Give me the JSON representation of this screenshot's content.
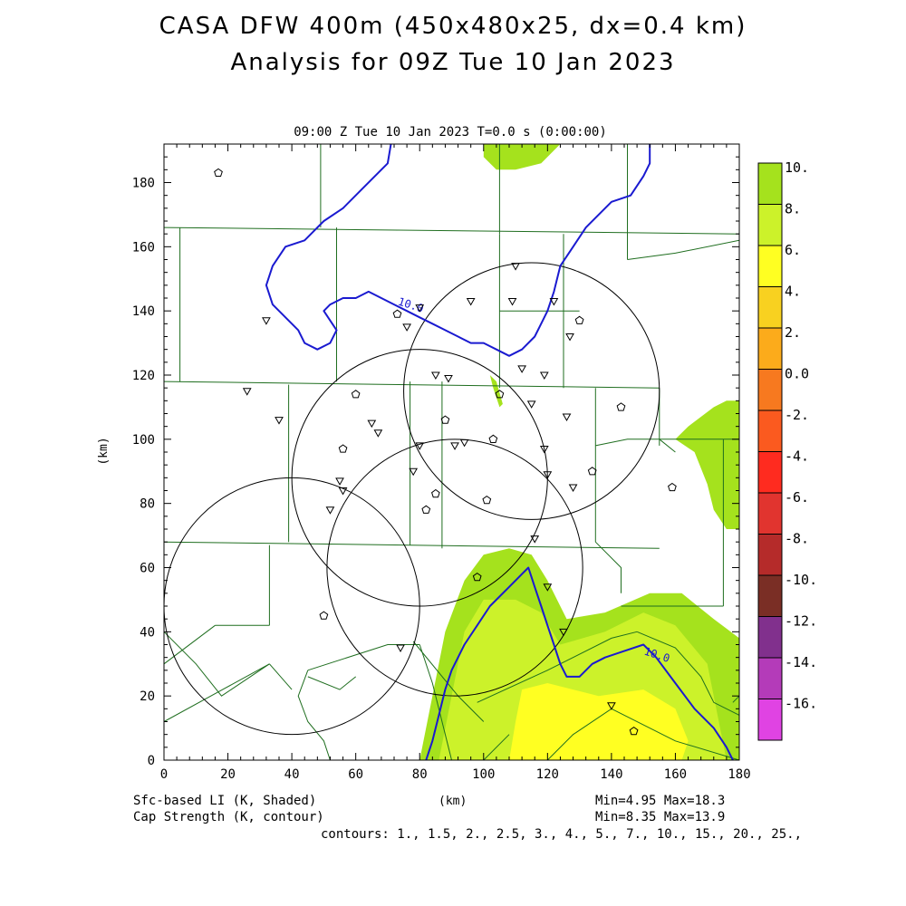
{
  "header": {
    "title_line1": "CASA DFW 400m (450x480x25, dx=0.4 km)",
    "title_line2": "Analysis for 09Z Tue 10 Jan 2023",
    "plot_time": "09:00 Z Tue 10 Jan 2023    T=0.0 s (0:00:00)"
  },
  "footer": {
    "left_line1": "Sfc-based LI (K, Shaded)",
    "left_line2": "Cap Strength (K, contour)",
    "center": "(km)",
    "right_line1": "Min=4.95 Max=18.3",
    "right_line2": "Min=8.35 Max=13.9",
    "contours": "contours: 1., 1.5, 2., 2.5, 3., 4., 5., 7., 10., 15., 20., 25.,"
  },
  "chart_data": {
    "type": "contour map",
    "title": "CASA DFW 400m (450x480x25, dx=0.4 km)",
    "subtitle": "Analysis for 09Z Tue 10 Jan 2023",
    "xlabel": "(km)",
    "ylabel": "(km)",
    "xlim": [
      0,
      180
    ],
    "ylim": [
      0,
      192
    ],
    "x_ticks": [
      0,
      20,
      40,
      60,
      80,
      100,
      120,
      140,
      160,
      180
    ],
    "y_ticks": [
      0,
      20,
      40,
      60,
      80,
      100,
      120,
      140,
      160,
      180
    ],
    "shaded_field": {
      "name": "Sfc-based LI (K, Shaded)",
      "min": 4.95,
      "max": 18.3,
      "regions": [
        {
          "level": "8-10",
          "color": "#a5e21d",
          "polygon": [
            [
              80,
              0
            ],
            [
              84,
              20
            ],
            [
              88,
              40
            ],
            [
              94,
              56
            ],
            [
              100,
              64
            ],
            [
              108,
              66
            ],
            [
              115,
              64
            ],
            [
              120,
              56
            ],
            [
              126,
              44
            ],
            [
              138,
              46
            ],
            [
              152,
              52
            ],
            [
              162,
              52
            ],
            [
              172,
              44
            ],
            [
              180,
              38
            ],
            [
              180,
              0
            ]
          ]
        },
        {
          "level": "8-10",
          "color": "#a5e21d",
          "polygon": [
            [
              100,
              192
            ],
            [
              100,
              188
            ],
            [
              104,
              184
            ],
            [
              110,
              184
            ],
            [
              118,
              186
            ],
            [
              124,
              192
            ]
          ]
        },
        {
          "level": "8-10",
          "color": "#a5e21d",
          "polygon": [
            [
              160,
              100
            ],
            [
              164,
              104
            ],
            [
              172,
              110
            ],
            [
              176,
              112
            ],
            [
              180,
              112
            ],
            [
              180,
              72
            ],
            [
              176,
              72
            ],
            [
              172,
              78
            ],
            [
              170,
              86
            ],
            [
              166,
              96
            ]
          ]
        },
        {
          "level": "8-10",
          "color": "#a5e21d",
          "polygon": [
            [
              102,
              120
            ],
            [
              104,
              118
            ],
            [
              106,
              111
            ],
            [
              105,
              110
            ],
            [
              103,
              116
            ]
          ]
        },
        {
          "level": "6-8",
          "color": "#ccf22a",
          "polygon": [
            [
              86,
              0
            ],
            [
              90,
              20
            ],
            [
              94,
              40
            ],
            [
              100,
              50
            ],
            [
              110,
              50
            ],
            [
              118,
              46
            ],
            [
              124,
              36
            ],
            [
              138,
              40
            ],
            [
              150,
              46
            ],
            [
              160,
              42
            ],
            [
              170,
              30
            ],
            [
              176,
              0
            ]
          ]
        },
        {
          "level": "4-6",
          "color": "#ffff22",
          "polygon": [
            [
              108,
              0
            ],
            [
              110,
              12
            ],
            [
              112,
              22
            ],
            [
              120,
              24
            ],
            [
              136,
              20
            ],
            [
              150,
              22
            ],
            [
              160,
              16
            ],
            [
              164,
              6
            ],
            [
              162,
              0
            ]
          ]
        }
      ]
    },
    "contour_field": {
      "name": "Cap Strength (K, contour)",
      "min": 8.35,
      "max": 13.9,
      "levels": [
        1.0,
        1.5,
        2.0,
        2.5,
        3.0,
        4.0,
        5.0,
        7.0,
        10.0,
        15.0,
        20.0,
        25.0
      ],
      "color": "#1a1ad0",
      "lines": [
        {
          "label": "10.0",
          "label_at": [
            73,
            142
          ],
          "points": [
            [
              71,
              192
            ],
            [
              70,
              186
            ],
            [
              62,
              178
            ],
            [
              56,
              172
            ],
            [
              50,
              168
            ],
            [
              44,
              162
            ],
            [
              38,
              160
            ],
            [
              34,
              154
            ],
            [
              32,
              148
            ],
            [
              34,
              142
            ],
            [
              38,
              138
            ],
            [
              42,
              134
            ],
            [
              44,
              130
            ],
            [
              48,
              128
            ],
            [
              52,
              130
            ],
            [
              54,
              134
            ],
            [
              50,
              140
            ],
            [
              52,
              142
            ],
            [
              56,
              144
            ],
            [
              60,
              144
            ],
            [
              64,
              146
            ],
            [
              68,
              144
            ],
            [
              72,
              142
            ],
            [
              76,
              140
            ],
            [
              80,
              138
            ],
            [
              84,
              136
            ],
            [
              88,
              134
            ],
            [
              92,
              132
            ],
            [
              96,
              130
            ],
            [
              100,
              130
            ],
            [
              104,
              128
            ],
            [
              108,
              126
            ],
            [
              112,
              128
            ],
            [
              116,
              132
            ],
            [
              118,
              136
            ],
            [
              120,
              140
            ],
            [
              122,
              146
            ],
            [
              124,
              154
            ],
            [
              128,
              160
            ],
            [
              132,
              166
            ],
            [
              136,
              170
            ],
            [
              140,
              174
            ],
            [
              146,
              176
            ],
            [
              150,
              182
            ],
            [
              152,
              186
            ],
            [
              152,
              192
            ]
          ]
        },
        {
          "label": "10.0",
          "label_at": [
            150,
            33
          ],
          "points": [
            [
              82,
              0
            ],
            [
              84,
              6
            ],
            [
              86,
              14
            ],
            [
              88,
              22
            ],
            [
              90,
              28
            ],
            [
              94,
              36
            ],
            [
              98,
              42
            ],
            [
              102,
              48
            ],
            [
              108,
              54
            ],
            [
              112,
              58
            ],
            [
              114,
              60
            ],
            [
              116,
              54
            ],
            [
              118,
              48
            ],
            [
              120,
              42
            ],
            [
              122,
              36
            ],
            [
              124,
              30
            ],
            [
              126,
              26
            ],
            [
              130,
              26
            ],
            [
              134,
              30
            ],
            [
              138,
              32
            ],
            [
              144,
              34
            ],
            [
              150,
              36
            ],
            [
              154,
              32
            ],
            [
              160,
              24
            ],
            [
              166,
              16
            ],
            [
              172,
              10
            ],
            [
              176,
              4
            ],
            [
              178,
              0
            ]
          ]
        }
      ]
    },
    "colorbar": {
      "labels": [
        "10.",
        "8.",
        "6.",
        "4.",
        "2.",
        "0.0",
        "-2.",
        "-4.",
        "-6.",
        "-8.",
        "-10.",
        "-12.",
        "-14.",
        "-16."
      ],
      "colors": [
        "#a5e21d",
        "#ccf22a",
        "#ffff22",
        "#f8d120",
        "#fcab1b",
        "#f7791f",
        "#fb5a1f",
        "#ff2b1f",
        "#e1342f",
        "#b52b2a",
        "#7a2e25",
        "#81308d",
        "#b43bb9",
        "#e043e3"
      ]
    },
    "range_rings": [
      {
        "center": [
          40,
          48
        ],
        "radius": 40
      },
      {
        "center": [
          80,
          88
        ],
        "radius": 40
      },
      {
        "center": [
          91,
          60
        ],
        "radius": 40
      },
      {
        "center": [
          115,
          115
        ],
        "radius": 40
      }
    ],
    "stations_triangle": [
      [
        110,
        154
      ],
      [
        96,
        143
      ],
      [
        109,
        143
      ],
      [
        122,
        143
      ],
      [
        80,
        141
      ],
      [
        32,
        137
      ],
      [
        76,
        135
      ],
      [
        127,
        132
      ],
      [
        112,
        122
      ],
      [
        119,
        120
      ],
      [
        85,
        120
      ],
      [
        89,
        119
      ],
      [
        26,
        115
      ],
      [
        115,
        111
      ],
      [
        126,
        107
      ],
      [
        36,
        106
      ],
      [
        65,
        105
      ],
      [
        67,
        102
      ],
      [
        80,
        98
      ],
      [
        91,
        98
      ],
      [
        94,
        99
      ],
      [
        119,
        97
      ],
      [
        78,
        90
      ],
      [
        55,
        87
      ],
      [
        56,
        84
      ],
      [
        120,
        89
      ],
      [
        128,
        85
      ],
      [
        52,
        78
      ],
      [
        116,
        69
      ],
      [
        120,
        54
      ],
      [
        125,
        40
      ],
      [
        74,
        35
      ],
      [
        140,
        17
      ]
    ],
    "stations_pentagon": [
      [
        17,
        183
      ],
      [
        73,
        139
      ],
      [
        130,
        137
      ],
      [
        60,
        114
      ],
      [
        105,
        114
      ],
      [
        143,
        110
      ],
      [
        88,
        106
      ],
      [
        56,
        97
      ],
      [
        103,
        100
      ],
      [
        134,
        90
      ],
      [
        85,
        83
      ],
      [
        82,
        78
      ],
      [
        101,
        81
      ],
      [
        159,
        85
      ],
      [
        98,
        57
      ],
      [
        50,
        45
      ],
      [
        147,
        9
      ]
    ],
    "county_lines": [
      [
        [
          0,
          166
        ],
        [
          180,
          164
        ]
      ],
      [
        [
          49,
          192
        ],
        [
          49,
          166
        ]
      ],
      [
        [
          105,
          192
        ],
        [
          105,
          164
        ]
      ],
      [
        [
          0,
          118
        ],
        [
          155,
          116
        ]
      ],
      [
        [
          5,
          166
        ],
        [
          5,
          118
        ]
      ],
      [
        [
          54,
          166
        ],
        [
          54,
          118
        ]
      ],
      [
        [
          105,
          164
        ],
        [
          105,
          116
        ]
      ],
      [
        [
          105,
          140
        ],
        [
          130,
          140
        ]
      ],
      [
        [
          125,
          164
        ],
        [
          125,
          116
        ]
      ],
      [
        [
          145,
          192
        ],
        [
          145,
          156
        ]
      ],
      [
        [
          145,
          156
        ],
        [
          160,
          158
        ],
        [
          180,
          162
        ]
      ],
      [
        [
          0,
          68
        ],
        [
          155,
          66
        ]
      ],
      [
        [
          39,
          117
        ],
        [
          39,
          68
        ]
      ],
      [
        [
          77,
          118
        ],
        [
          77,
          67
        ]
      ],
      [
        [
          87,
          118
        ],
        [
          87,
          66
        ]
      ],
      [
        [
          135,
          116
        ],
        [
          135,
          68
        ]
      ],
      [
        [
          135,
          98
        ],
        [
          145,
          100
        ],
        [
          155,
          100
        ],
        [
          180,
          100
        ]
      ],
      [
        [
          155,
          116
        ],
        [
          155,
          98
        ]
      ],
      [
        [
          155,
          100
        ],
        [
          160,
          96
        ]
      ],
      [
        [
          175,
          100
        ],
        [
          175,
          48
        ]
      ],
      [
        [
          135,
          68
        ],
        [
          143,
          60
        ],
        [
          143,
          52
        ]
      ],
      [
        [
          143,
          48
        ],
        [
          175,
          48
        ]
      ],
      [
        [
          33,
          67
        ],
        [
          33,
          42
        ]
      ],
      [
        [
          16,
          42
        ],
        [
          33,
          42
        ]
      ],
      [
        [
          16,
          42
        ],
        [
          0,
          30
        ]
      ],
      [
        [
          0,
          40
        ],
        [
          10,
          30
        ],
        [
          18,
          20
        ],
        [
          33,
          30
        ]
      ],
      [
        [
          33,
          30
        ],
        [
          40,
          22
        ]
      ],
      [
        [
          45,
          28
        ],
        [
          70,
          36
        ],
        [
          80,
          36
        ]
      ],
      [
        [
          80,
          36
        ],
        [
          84,
          24
        ],
        [
          90,
          0
        ]
      ],
      [
        [
          45,
          28
        ],
        [
          42,
          20
        ],
        [
          45,
          12
        ],
        [
          50,
          6
        ],
        [
          52,
          0
        ]
      ],
      [
        [
          0,
          12
        ],
        [
          33,
          30
        ]
      ],
      [
        [
          78,
          37
        ],
        [
          92,
          20
        ],
        [
          100,
          12
        ]
      ],
      [
        [
          98,
          18
        ],
        [
          120,
          28
        ],
        [
          140,
          38
        ],
        [
          148,
          40
        ]
      ],
      [
        [
          148,
          40
        ],
        [
          160,
          35
        ],
        [
          168,
          26
        ],
        [
          172,
          18
        ],
        [
          180,
          14
        ]
      ],
      [
        [
          120,
          0
        ],
        [
          128,
          8
        ],
        [
          140,
          16
        ],
        [
          160,
          6
        ],
        [
          180,
          0
        ]
      ],
      [
        [
          45,
          26
        ],
        [
          55,
          22
        ],
        [
          60,
          26
        ]
      ],
      [
        [
          100,
          0
        ],
        [
          108,
          8
        ]
      ],
      [
        [
          178,
          18
        ],
        [
          180,
          20
        ]
      ]
    ]
  }
}
